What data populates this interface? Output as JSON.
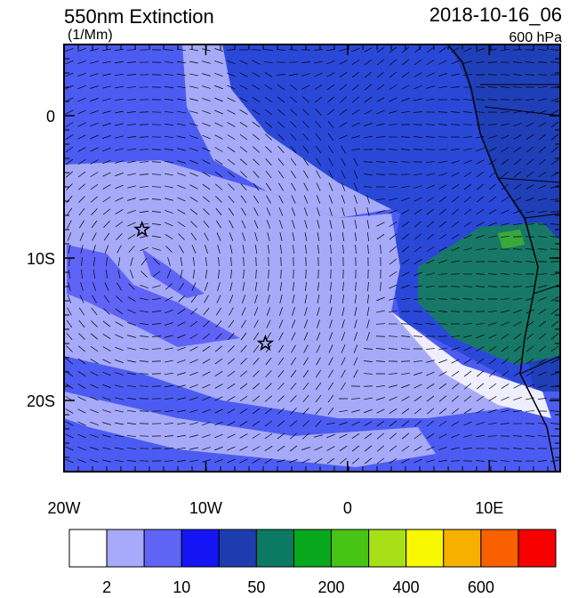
{
  "title": "550nm Extinction",
  "units": "(1/Mm)",
  "date": "2018-10-16_06",
  "level": "600 hPa",
  "map": {
    "xlim": [
      -20,
      15
    ],
    "ylim": [
      -25,
      5
    ],
    "xticks": [
      {
        "value": -20,
        "label": "20W"
      },
      {
        "value": -10,
        "label": "10W"
      },
      0,
      {
        "value": 10,
        "label": "10E"
      }
    ],
    "yticks": [
      0,
      {
        "value": -10,
        "label": "10S"
      },
      {
        "value": -20,
        "label": "20S"
      }
    ],
    "markers": [
      {
        "lon": -14.5,
        "lat": -8
      },
      {
        "lon": -5.8,
        "lat": -16
      }
    ]
  },
  "colorbar": {
    "colors": [
      "#ffffff",
      "#a6aaf8",
      "#5f64f6",
      "#1414f4",
      "#1c3cb0",
      "#0c7a62",
      "#08a81c",
      "#48c414",
      "#a8e018",
      "#f8f800",
      "#f8b000",
      "#f86000",
      "#f80000"
    ],
    "labels": [
      2,
      10,
      50,
      200,
      400,
      600
    ]
  }
}
